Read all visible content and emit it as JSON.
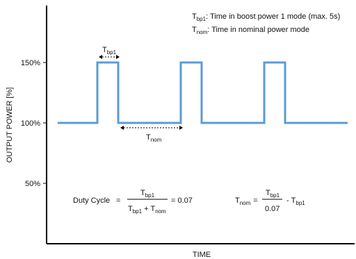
{
  "chart_data": {
    "type": "line",
    "title": "",
    "xlabel": "TIME",
    "ylabel": "OUTPUT POWER [%]",
    "y_ticks": [
      {
        "value": 50,
        "label": "50%"
      },
      {
        "value": 100,
        "label": "100%"
      },
      {
        "value": 150,
        "label": "150%"
      }
    ],
    "ylim": [
      0,
      200
    ],
    "series": [
      {
        "color": "#5b9bd5",
        "x": [
          0,
          9.5,
          9.5,
          14.5,
          14.5,
          29.5,
          29.5,
          34.5,
          34.5,
          49.5,
          49.5,
          54.5,
          54.5,
          69.5
        ],
        "values": [
          100,
          100,
          150,
          150,
          100,
          100,
          150,
          150,
          100,
          100,
          150,
          150,
          100,
          100
        ]
      }
    ],
    "legend": {
      "tbp1_sym": "T",
      "tbp1_sub": "bp1",
      "tbp1_text": ": Time in boost power 1 mode (max. 5s)",
      "tnom_sym": "T",
      "tnom_sub": "nom",
      "tnom_text": ": Time in nominal power mode"
    },
    "annotations": {
      "tbp1": {
        "sym": "T",
        "sub": "bp1"
      },
      "tnom": {
        "sym": "T",
        "sub": "nom"
      }
    },
    "formula_duty": {
      "label": "Duty Cycle",
      "eq": "=",
      "num_sym": "T",
      "num_sub": "bp1",
      "den_a_sym": "T",
      "den_a_sub": "bp1",
      "den_plus": "+",
      "den_b_sym": "T",
      "den_b_sub": "nom",
      "result": "= 0.07"
    },
    "formula_tnom": {
      "lhs_sym": "T",
      "lhs_sub": "nom",
      "eq": "=",
      "num_sym": "T",
      "num_sub": "bp1",
      "den": "0.07",
      "minus": "-",
      "rhs_sym": "T",
      "rhs_sub": "bp1"
    }
  }
}
